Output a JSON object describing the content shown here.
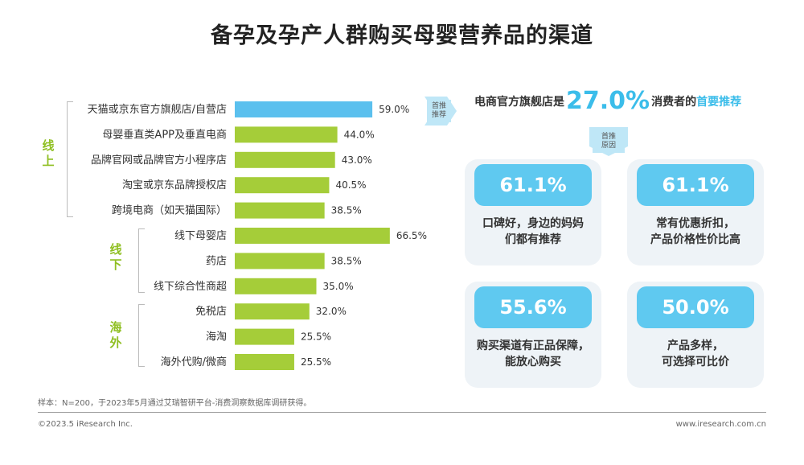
{
  "title": "备孕及孕产人群购买母婴营养品的渠道",
  "groups": [
    {
      "label": "线上"
    },
    {
      "label": "线下"
    },
    {
      "label": "海外"
    }
  ],
  "chart_data": {
    "type": "bar",
    "orientation": "horizontal",
    "categories": [
      "天猫或京东官方旗舰店/自营店",
      "母婴垂直类APP及垂直电商",
      "品牌官网或品牌官方小程序店",
      "淘宝或京东品牌授权店",
      "跨境电商（如天猫国际）",
      "线下母婴店",
      "药店",
      "线下综合性商超",
      "免税店",
      "海淘",
      "海外代购/微商"
    ],
    "values": [
      59.0,
      44.0,
      43.0,
      40.5,
      38.5,
      66.5,
      38.5,
      35.0,
      32.0,
      25.5,
      25.5
    ],
    "value_labels": [
      "59.0%",
      "44.0%",
      "43.0%",
      "40.5%",
      "38.5%",
      "66.5%",
      "38.5%",
      "35.0%",
      "32.0%",
      "25.5%",
      "25.5%"
    ],
    "category_groups": [
      "线上",
      "线上",
      "线上",
      "线上",
      "线上",
      "线下",
      "线下",
      "线下",
      "海外",
      "海外",
      "海外"
    ],
    "highlight_index": 0,
    "colors": {
      "highlight": "#5bc0ee",
      "default": "#a5cd39"
    },
    "xlim": [
      0,
      70
    ]
  },
  "right": {
    "tag1": "首推\n推荐",
    "headline_pre": "电商官方旗舰店是",
    "headline_big": "27.0%",
    "headline_mid": "消费者的",
    "headline_hl": "首要推荐",
    "tag2": "首推\n原因",
    "cards": [
      {
        "pct": "61.1%",
        "desc": "口碑好，身边的妈妈\n们都有推荐"
      },
      {
        "pct": "61.1%",
        "desc": "常有优惠折扣，\n产品价格性价比高"
      },
      {
        "pct": "55.6%",
        "desc": "购买渠道有正品保障，\n能放心购买"
      },
      {
        "pct": "50.0%",
        "desc": "产品多样，\n可选择可比价"
      }
    ]
  },
  "footer": {
    "note": "样本：N=200，于2023年5月通过艾瑞智研平台-消费洞察数据库调研获得。",
    "copyright": "©2023.5 iResearch Inc.",
    "website": "www.iresearch.com.cn"
  }
}
